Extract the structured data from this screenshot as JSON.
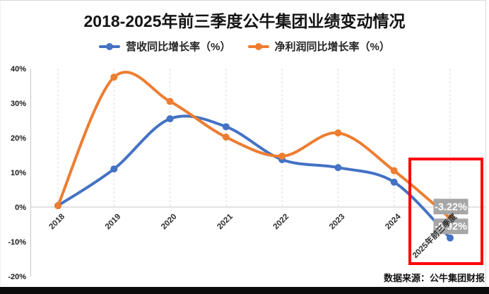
{
  "header": {
    "title": "2018-2025年前三季度公牛集团业绩变动情况"
  },
  "footer": {
    "source": "数据来源：公牛集团财报"
  },
  "chart_data": {
    "type": "line",
    "smooth": true,
    "categories": [
      "2018",
      "2019",
      "2020",
      "2021",
      "2022",
      "2023",
      "2024",
      "2025年前三季度"
    ],
    "series": [
      {
        "name": "营收同比增长率（%）",
        "color": "#4472C4",
        "values": [
          0.4,
          11.0,
          25.5,
          23.2,
          13.7,
          11.4,
          7.2,
          -8.92
        ]
      },
      {
        "name": "净利润同比增长率（%）",
        "color": "#ED7D31",
        "values": [
          0.4,
          37.5,
          30.5,
          20.2,
          14.7,
          21.4,
          10.5,
          -3.22
        ]
      }
    ],
    "ylim": [
      -20,
      40
    ],
    "yticks": [
      {
        "label": "40%",
        "value": 40
      },
      {
        "label": "30%",
        "value": 30
      },
      {
        "label": "20%",
        "value": 20
      },
      {
        "label": "10%",
        "value": 10
      },
      {
        "label": "0%",
        "value": 0
      },
      {
        "label": "-10%",
        "value": -10
      },
      {
        "label": "-20%",
        "value": -20
      }
    ],
    "grid": "vertical-dashed-above-zero",
    "legend_position": "top-center",
    "data_labels": [
      {
        "series": 1,
        "index": 7,
        "text": "-3.22%"
      },
      {
        "series": 0,
        "index": 7,
        "text": "-8.92%"
      }
    ],
    "data_label_bg": "#a6a6a6",
    "data_label_color": "#ffffff",
    "annotation": {
      "type": "highlight-box",
      "color": "#ff0000",
      "target": "2025年前三季度"
    }
  }
}
